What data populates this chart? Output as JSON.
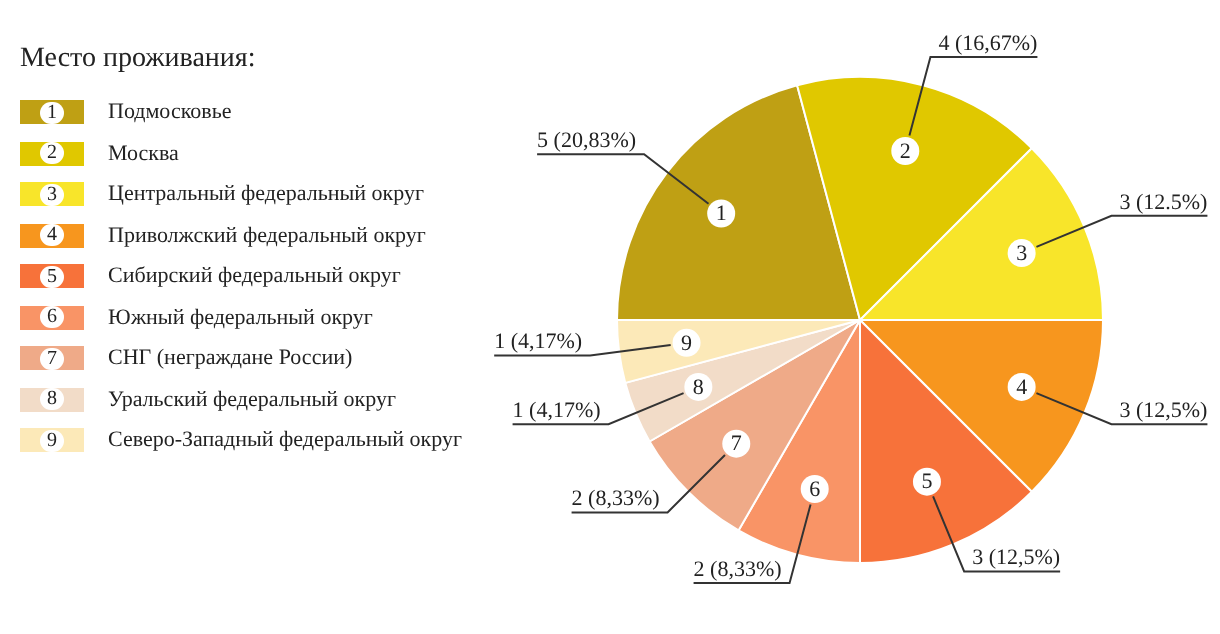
{
  "chart_data": {
    "type": "pie",
    "legend_title": "Место проживания:",
    "categories": [
      "Подмосковье",
      "Москва",
      "Центральный федеральный округ",
      "Приволжский федеральный округ",
      "Сибирский федеральный округ",
      "Южный федеральный округ",
      "СНГ (неграждане России)",
      "Уральский федеральный округ",
      "Северо-Западный федеральный округ"
    ],
    "values": [
      5,
      4,
      3,
      3,
      3,
      2,
      2,
      1,
      1
    ],
    "colors": [
      "#bfa014",
      "#e0c800",
      "#f8e52a",
      "#f7961e",
      "#f7723a",
      "#f99466",
      "#efaa88",
      "#f2dcc8",
      "#fce9b8"
    ],
    "value_labels": [
      "5 (20,83%)",
      "4 (16,67%)",
      "3 (12.5%)",
      "3 (12,5%)",
      "3 (12,5%)",
      "2 (8,33%)",
      "2 (8,33%)",
      "1 (4,17%)",
      "1 (4,17%)"
    ],
    "annotations": [
      "1",
      "2",
      "3",
      "4",
      "5",
      "6",
      "7",
      "8",
      "9"
    ],
    "legend": "left"
  }
}
